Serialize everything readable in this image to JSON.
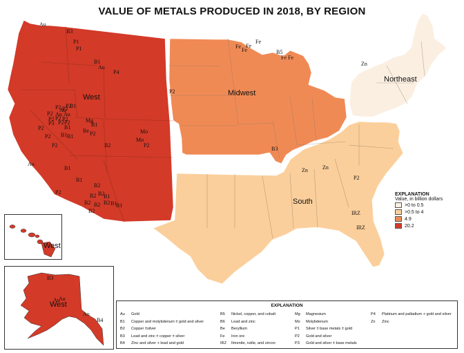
{
  "title": "VALUE OF METALS PRODUCED IN 2018, BY REGION",
  "regions": {
    "west": {
      "label": "West",
      "color": "#d33a28"
    },
    "midwest": {
      "label": "Midwest",
      "color": "#f08a55"
    },
    "northeast": {
      "label": "Northeast",
      "color": "#fbefe2"
    },
    "south": {
      "label": "South",
      "color": "#fbcf9b"
    }
  },
  "inset_labels": {
    "hawaii": "West",
    "alaska": "West"
  },
  "value_legend": {
    "title": "EXPLANATION",
    "subtitle": "Value, in billion dollars",
    "items": [
      {
        "label": ">0 to 0.5",
        "color": "#fbefe2"
      },
      {
        "label": ">0.5 to 4",
        "color": "#fbcf9b"
      },
      {
        "label": "4.9",
        "color": "#f08a55"
      },
      {
        "label": "20.2",
        "color": "#d33a28"
      }
    ]
  },
  "code_legend": {
    "title": "EXPLANATION",
    "columns": [
      [
        {
          "code": "Au",
          "desc": "Gold"
        },
        {
          "code": "B1",
          "desc": "Copper and molybdenum ± gold and silver"
        },
        {
          "code": "B2",
          "desc": "Copper ±silver"
        },
        {
          "code": "B3",
          "desc": "Lead and zinc ± copper ± silver"
        },
        {
          "code": "B4",
          "desc": "Zinc and silver + lead and gold"
        }
      ],
      [
        {
          "code": "B5",
          "desc": "Nickel, copper, and cobalt"
        },
        {
          "code": "B6",
          "desc": "Lead and zinc"
        },
        {
          "code": "Be",
          "desc": "Beryllium"
        },
        {
          "code": "Fe",
          "desc": "Iron ore"
        },
        {
          "code": "IRZ",
          "desc": "Ilmenite, rutile, and zircon"
        }
      ],
      [
        {
          "code": "Mg",
          "desc": "Magnesium"
        },
        {
          "code": "Mo",
          "desc": "Molybdenum"
        },
        {
          "code": "P1",
          "desc": "Silver ± base metals ± gold"
        },
        {
          "code": "P2",
          "desc": "Gold and silver"
        },
        {
          "code": "P3",
          "desc": "Gold and silver ± base metals"
        }
      ],
      [
        {
          "code": "P4",
          "desc": "Platinum and palladium + gold and silver"
        },
        {
          "code": "Zn",
          "desc": "Zinc"
        }
      ]
    ]
  },
  "map_codes": [
    {
      "code": "Au",
      "region": "west"
    },
    {
      "code": "B3",
      "region": "west"
    },
    {
      "code": "P1",
      "region": "west"
    },
    {
      "code": "P1",
      "region": "west"
    },
    {
      "code": "B1",
      "region": "west"
    },
    {
      "code": "Au",
      "region": "west"
    },
    {
      "code": "P4",
      "region": "west"
    },
    {
      "code": "P2",
      "region": "west"
    },
    {
      "code": "Au",
      "region": "west"
    },
    {
      "code": "P2",
      "region": "west"
    },
    {
      "code": "P2",
      "region": "west"
    },
    {
      "code": "B1",
      "region": "west"
    },
    {
      "code": "P2",
      "region": "west"
    },
    {
      "code": "Au",
      "region": "west"
    },
    {
      "code": "Au",
      "region": "west"
    },
    {
      "code": "P2",
      "region": "west"
    },
    {
      "code": "P2",
      "region": "west"
    },
    {
      "code": "P2",
      "region": "west"
    },
    {
      "code": "P3",
      "region": "west"
    },
    {
      "code": "P2",
      "region": "west"
    },
    {
      "code": "P2",
      "region": "west"
    },
    {
      "code": "B1",
      "region": "west"
    },
    {
      "code": "P2",
      "region": "west"
    },
    {
      "code": "P2",
      "region": "west"
    },
    {
      "code": "B1",
      "region": "west"
    },
    {
      "code": "P2",
      "region": "west"
    },
    {
      "code": "Mg",
      "region": "west"
    },
    {
      "code": "B1",
      "region": "west"
    },
    {
      "code": "Be",
      "region": "west"
    },
    {
      "code": "P2",
      "region": "west"
    },
    {
      "code": "B1",
      "region": "west"
    },
    {
      "code": "B2",
      "region": "west"
    },
    {
      "code": "Mo",
      "region": "west"
    },
    {
      "code": "Mo",
      "region": "west"
    },
    {
      "code": "P2",
      "region": "west"
    },
    {
      "code": "Au",
      "region": "west"
    },
    {
      "code": "B1",
      "region": "west"
    },
    {
      "code": "B1",
      "region": "west"
    },
    {
      "code": "P2",
      "region": "west"
    },
    {
      "code": "B2",
      "region": "west"
    },
    {
      "code": "B2",
      "region": "west"
    },
    {
      "code": "B2",
      "region": "west"
    },
    {
      "code": "B2",
      "region": "west"
    },
    {
      "code": "B1",
      "region": "west"
    },
    {
      "code": "B2",
      "region": "west"
    },
    {
      "code": "B2",
      "region": "west"
    },
    {
      "code": "B1",
      "region": "west"
    },
    {
      "code": "B1",
      "region": "west"
    },
    {
      "code": "B2",
      "region": "west"
    },
    {
      "code": "P2",
      "region": "midwest"
    },
    {
      "code": "Fe",
      "region": "midwest"
    },
    {
      "code": "Fe",
      "region": "midwest"
    },
    {
      "code": "Fe",
      "region": "midwest"
    },
    {
      "code": "Fe",
      "region": "midwest"
    },
    {
      "code": "B5",
      "region": "midwest"
    },
    {
      "code": "Fe",
      "region": "midwest"
    },
    {
      "code": "Fe",
      "region": "midwest"
    },
    {
      "code": "B3",
      "region": "midwest"
    },
    {
      "code": "Zn",
      "region": "northeast"
    },
    {
      "code": "Zn",
      "region": "south"
    },
    {
      "code": "Zn",
      "region": "south"
    },
    {
      "code": "P2",
      "region": "south"
    },
    {
      "code": "IRZ",
      "region": "south"
    },
    {
      "code": "IRZ",
      "region": "south"
    },
    {
      "code": "B3",
      "region": "alaska"
    },
    {
      "code": "Au",
      "region": "alaska"
    },
    {
      "code": "Au",
      "region": "alaska"
    },
    {
      "code": "Au",
      "region": "alaska"
    },
    {
      "code": "B4",
      "region": "alaska"
    }
  ]
}
